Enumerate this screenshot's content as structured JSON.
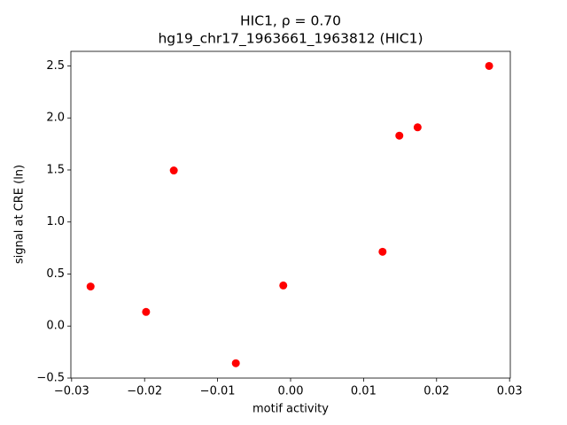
{
  "chart_data": {
    "type": "scatter",
    "title": "HIC1, ρ = 0.70",
    "subtitle": "hg19_chr17_1963661_1963812 (HIC1)",
    "xlabel": "motif activity",
    "ylabel": "signal at CRE (ln)",
    "color": "#ff0000",
    "x": [
      -0.0274,
      -0.0198,
      -0.016,
      -0.0075,
      -0.001,
      0.0126,
      0.0149,
      0.0174,
      0.0272
    ],
    "values": [
      0.38,
      0.136,
      1.495,
      -0.357,
      0.39,
      0.714,
      1.83,
      1.91,
      2.5
    ],
    "xlim": [
      -0.0301,
      0.0301
    ],
    "ylim": [
      -0.5,
      2.64
    ],
    "xticks": [
      {
        "value": -0.03,
        "label": "−0.03"
      },
      {
        "value": -0.02,
        "label": "−0.02"
      },
      {
        "value": -0.01,
        "label": "−0.01"
      },
      {
        "value": 0,
        "label": "0.00"
      },
      0.01,
      0.02,
      0.03
    ],
    "yticks": [
      {
        "value": -0.5,
        "label": "−0.5"
      },
      {
        "value": 0,
        "label": "0.0"
      },
      0.5,
      {
        "value": 1,
        "label": "1.0"
      },
      1.5,
      {
        "value": 2,
        "label": "2.0"
      },
      2.5
    ]
  }
}
